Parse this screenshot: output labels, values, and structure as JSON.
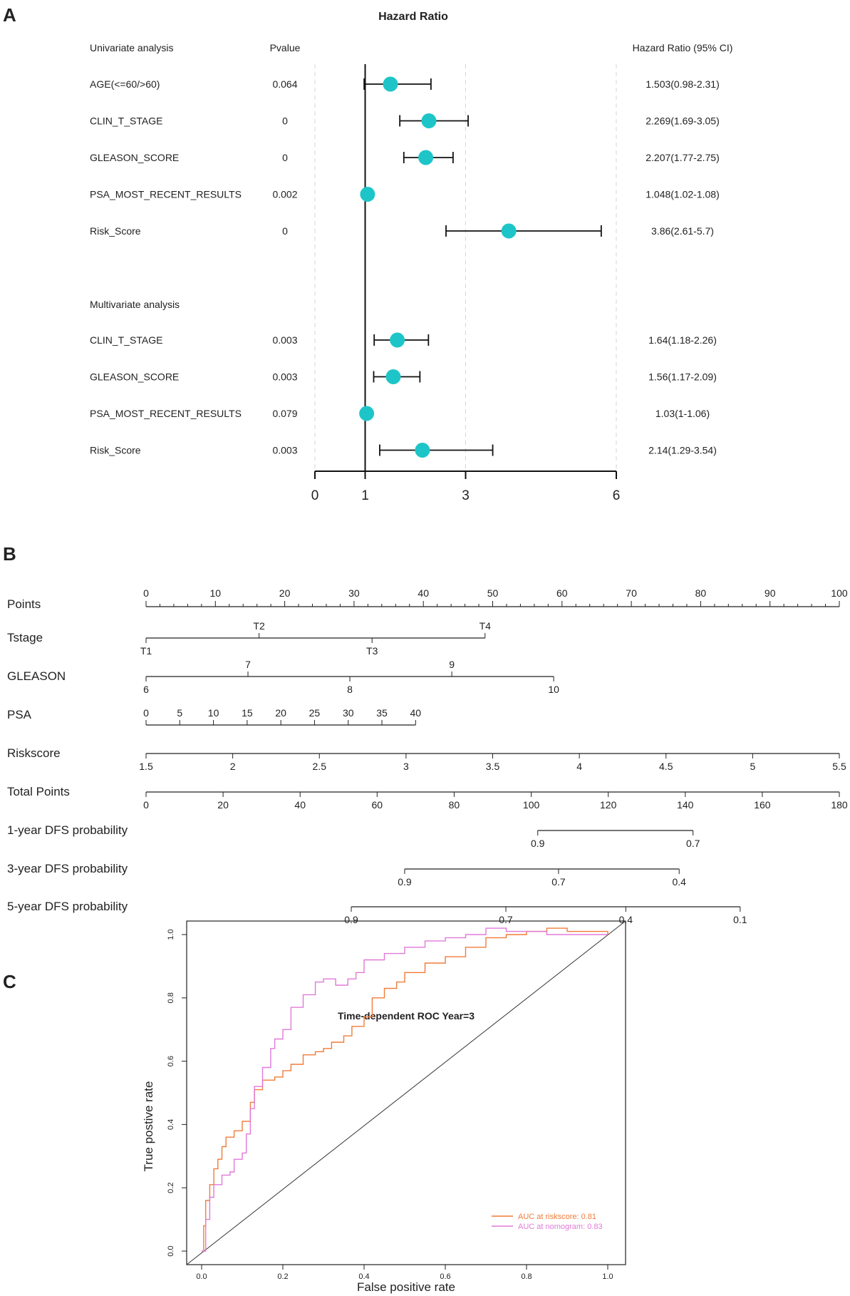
{
  "chart_data": [
    {
      "panel": "A",
      "type": "forest",
      "title": "Hazard Ratio",
      "headers": {
        "name": "Univariate analysis",
        "p": "Pvalue",
        "hr": "Hazard Ratio (95% CI)"
      },
      "multivariate_header": "Multivariate analysis",
      "xticks": [
        "0",
        "1",
        "3",
        "6"
      ],
      "xlim": [
        0,
        6
      ],
      "reference": 1,
      "point_color": "#1ec5c8",
      "univariate": [
        {
          "name": "AGE(<=60/>60)",
          "p": "0.064",
          "hr": 1.503,
          "lo": 0.98,
          "hi": 2.31,
          "label": "1.503(0.98-2.31)"
        },
        {
          "name": "CLIN_T_STAGE",
          "p": "0",
          "hr": 2.269,
          "lo": 1.69,
          "hi": 3.05,
          "label": "2.269(1.69-3.05)"
        },
        {
          "name": "GLEASON_SCORE",
          "p": "0",
          "hr": 2.207,
          "lo": 1.77,
          "hi": 2.75,
          "label": "2.207(1.77-2.75)"
        },
        {
          "name": "PSA_MOST_RECENT_RESULTS",
          "p": "0.002",
          "hr": 1.048,
          "lo": 1.02,
          "hi": 1.08,
          "label": "1.048(1.02-1.08)"
        },
        {
          "name": "Risk_Score",
          "p": "0",
          "hr": 3.86,
          "lo": 2.61,
          "hi": 5.7,
          "label": "3.86(2.61-5.7)"
        }
      ],
      "multivariate": [
        {
          "name": "CLIN_T_STAGE",
          "p": "0.003",
          "hr": 1.64,
          "lo": 1.18,
          "hi": 2.26,
          "label": "1.64(1.18-2.26)"
        },
        {
          "name": "GLEASON_SCORE",
          "p": "0.003",
          "hr": 1.56,
          "lo": 1.17,
          "hi": 2.09,
          "label": "1.56(1.17-2.09)"
        },
        {
          "name": "PSA_MOST_RECENT_RESULTS",
          "p": "0.079",
          "hr": 1.03,
          "lo": 1.0,
          "hi": 1.06,
          "label": "1.03(1-1.06)"
        },
        {
          "name": "Risk_Score",
          "p": "0.003",
          "hr": 2.14,
          "lo": 1.29,
          "hi": 3.54,
          "label": "2.14(1.29-3.54)"
        }
      ]
    },
    {
      "panel": "B",
      "type": "nomogram",
      "rows": [
        {
          "label": "Points",
          "kind": "points",
          "ticks": [
            {
              "v": 0,
              "t": "0"
            },
            {
              "v": 10,
              "t": "10"
            },
            {
              "v": 20,
              "t": "20"
            },
            {
              "v": 30,
              "t": "30"
            },
            {
              "v": 40,
              "t": "40"
            },
            {
              "v": 50,
              "t": "50"
            },
            {
              "v": 60,
              "t": "60"
            },
            {
              "v": 70,
              "t": "70"
            },
            {
              "v": 80,
              "t": "80"
            },
            {
              "v": 90,
              "t": "90"
            },
            {
              "v": 100,
              "t": "100"
            }
          ]
        },
        {
          "label": "Tstage",
          "kind": "alt",
          "ticks": [
            {
              "v": 0,
              "t": "T1",
              "pos": "below"
            },
            {
              "v": 16.3,
              "t": "T2",
              "pos": "above"
            },
            {
              "v": 32.6,
              "t": "T3",
              "pos": "below"
            },
            {
              "v": 48.9,
              "t": "T4",
              "pos": "above"
            }
          ]
        },
        {
          "label": "GLEASON",
          "kind": "alt",
          "ticks": [
            {
              "v": 0,
              "t": "6",
              "pos": "below"
            },
            {
              "v": 14.7,
              "t": "7",
              "pos": "above"
            },
            {
              "v": 29.4,
              "t": "8",
              "pos": "below"
            },
            {
              "v": 44.1,
              "t": "9",
              "pos": "above"
            },
            {
              "v": 58.8,
              "t": "10",
              "pos": "below"
            }
          ]
        },
        {
          "label": "PSA",
          "kind": "top",
          "ticks": [
            {
              "v": 0,
              "t": "0"
            },
            {
              "v": 4.86,
              "t": "5"
            },
            {
              "v": 9.72,
              "t": "10"
            },
            {
              "v": 14.58,
              "t": "15"
            },
            {
              "v": 19.44,
              "t": "20"
            },
            {
              "v": 24.3,
              "t": "25"
            },
            {
              "v": 29.16,
              "t": "30"
            },
            {
              "v": 34.02,
              "t": "35"
            },
            {
              "v": 38.88,
              "t": "40"
            }
          ]
        },
        {
          "label": "Riskscore",
          "kind": "bottom",
          "ticks": [
            {
              "v": 0,
              "t": "1.5"
            },
            {
              "v": 12.5,
              "t": "2"
            },
            {
              "v": 25,
              "t": "2.5"
            },
            {
              "v": 37.5,
              "t": "3"
            },
            {
              "v": 50,
              "t": "3.5"
            },
            {
              "v": 62.5,
              "t": "4"
            },
            {
              "v": 75,
              "t": "4.5"
            },
            {
              "v": 87.5,
              "t": "5"
            },
            {
              "v": 100,
              "t": "5.5"
            }
          ]
        },
        {
          "label": "Total Points",
          "kind": "bottom",
          "ticks": [
            {
              "v": 0,
              "t": "0"
            },
            {
              "v": 11.11,
              "t": "20"
            },
            {
              "v": 22.22,
              "t": "40"
            },
            {
              "v": 33.33,
              "t": "60"
            },
            {
              "v": 44.44,
              "t": "80"
            },
            {
              "v": 55.56,
              "t": "100"
            },
            {
              "v": 66.67,
              "t": "120"
            },
            {
              "v": 77.78,
              "t": "140"
            },
            {
              "v": 88.89,
              "t": "160"
            },
            {
              "v": 100,
              "t": "180"
            }
          ]
        },
        {
          "label": "1-year DFS probability",
          "kind": "bottom",
          "ticks": [
            {
              "v": 56.5,
              "t": "0.9"
            },
            {
              "v": 78.9,
              "t": "0.7"
            }
          ]
        },
        {
          "label": "3-year DFS probability",
          "kind": "bottom",
          "ticks": [
            {
              "v": 37.3,
              "t": "0.9"
            },
            {
              "v": 59.5,
              "t": "0.7"
            },
            {
              "v": 76.9,
              "t": "0.4"
            }
          ]
        },
        {
          "label": "5-year DFS probability",
          "kind": "bottom",
          "ticks": [
            {
              "v": 29.6,
              "t": "0.9"
            },
            {
              "v": 51.9,
              "t": "0.7"
            },
            {
              "v": 69.2,
              "t": "0.4"
            },
            {
              "v": 85.7,
              "t": "0.1"
            }
          ]
        }
      ]
    },
    {
      "panel": "C",
      "type": "line",
      "title": "Time-dependent ROC Year=3",
      "xlabel": "False positive rate",
      "ylabel": "True postive rate",
      "xlim": [
        0,
        1
      ],
      "ylim": [
        0,
        1
      ],
      "xticks": [
        "0.0",
        "0.2",
        "0.4",
        "0.6",
        "0.8",
        "1.0"
      ],
      "yticks": [
        "0.0",
        "0.2",
        "0.4",
        "0.6",
        "0.8",
        "1.0"
      ],
      "series": [
        {
          "name": "AUC at riskscore: 0.81",
          "color": "#f07c3a",
          "x": [
            0.0,
            0.005,
            0.01,
            0.02,
            0.03,
            0.04,
            0.05,
            0.06,
            0.08,
            0.1,
            0.12,
            0.13,
            0.15,
            0.18,
            0.2,
            0.22,
            0.25,
            0.28,
            0.3,
            0.32,
            0.35,
            0.37,
            0.4,
            0.42,
            0.45,
            0.48,
            0.5,
            0.55,
            0.6,
            0.65,
            0.7,
            0.75,
            0.8,
            0.85,
            0.9,
            0.95,
            1.0
          ],
          "y": [
            0.0,
            0.08,
            0.16,
            0.21,
            0.26,
            0.29,
            0.33,
            0.36,
            0.38,
            0.41,
            0.47,
            0.51,
            0.54,
            0.55,
            0.57,
            0.59,
            0.62,
            0.63,
            0.64,
            0.66,
            0.68,
            0.71,
            0.74,
            0.8,
            0.83,
            0.85,
            0.88,
            0.91,
            0.93,
            0.96,
            0.99,
            1.0,
            1.01,
            1.02,
            1.01,
            1.01,
            1.0
          ]
        },
        {
          "name": "AUC at nomogram: 0.83",
          "color": "#e07ad8",
          "x": [
            0.0,
            0.01,
            0.02,
            0.03,
            0.05,
            0.07,
            0.08,
            0.1,
            0.11,
            0.12,
            0.13,
            0.15,
            0.17,
            0.18,
            0.2,
            0.22,
            0.25,
            0.28,
            0.3,
            0.33,
            0.36,
            0.38,
            0.4,
            0.45,
            0.5,
            0.55,
            0.6,
            0.65,
            0.7,
            0.75,
            0.8,
            0.85,
            0.9,
            0.95,
            1.0
          ],
          "y": [
            0.0,
            0.1,
            0.17,
            0.21,
            0.24,
            0.25,
            0.29,
            0.31,
            0.37,
            0.45,
            0.52,
            0.58,
            0.64,
            0.67,
            0.7,
            0.77,
            0.81,
            0.85,
            0.86,
            0.84,
            0.86,
            0.88,
            0.92,
            0.94,
            0.96,
            0.98,
            0.99,
            1.0,
            1.02,
            1.01,
            1.01,
            1.0,
            1.0,
            1.0,
            1.0
          ]
        }
      ]
    }
  ],
  "panel_labels": [
    "A",
    "B",
    "C"
  ]
}
